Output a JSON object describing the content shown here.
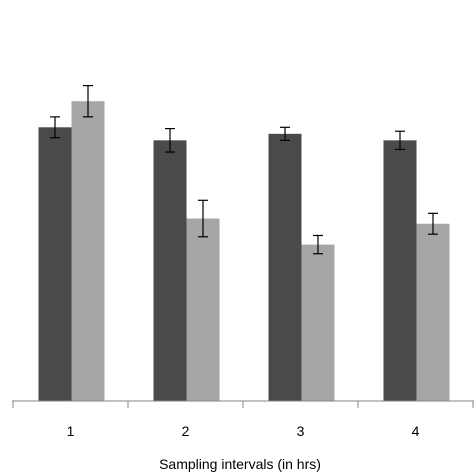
{
  "chart_data": {
    "type": "bar",
    "categories": [
      "1",
      "2",
      "3",
      "4"
    ],
    "series": [
      {
        "values": [
          10.5,
          10.0,
          10.25,
          10.0
        ],
        "errors": [
          0.4,
          0.45,
          0.25,
          0.35
        ],
        "color": "#4a4a4a"
      },
      {
        "values": [
          11.5,
          7.0,
          6.0,
          6.8
        ],
        "errors": [
          0.6,
          0.7,
          0.35,
          0.4
        ],
        "color": "#a6a6a6"
      }
    ],
    "title": "",
    "xlabel": "Sampling intervals (in hrs)",
    "ylabel": "",
    "ylim": [
      0,
      15
    ],
    "grid": false,
    "legend": "none"
  }
}
